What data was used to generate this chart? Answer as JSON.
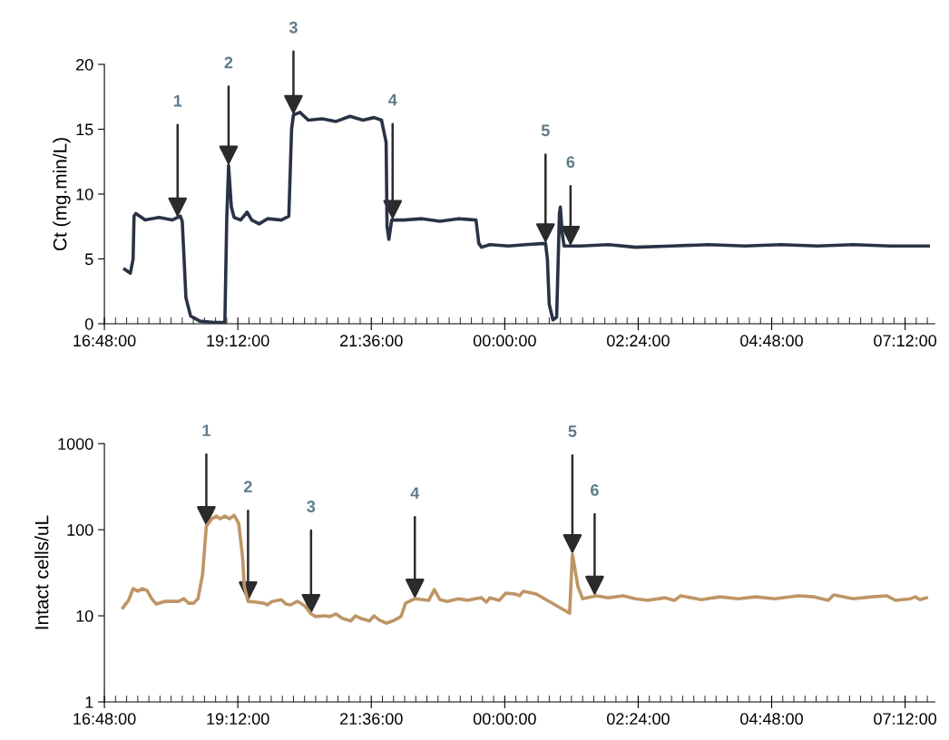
{
  "chart_data": [
    {
      "type": "line",
      "ylabel": "Ct (mg.min/L)",
      "xlim": [
        "2000-01-01T16:48",
        "2000-01-02T07:44"
      ],
      "ylim": [
        0,
        20
      ],
      "yticks": [
        0,
        5,
        10,
        15,
        20
      ],
      "xticks": [
        {
          "value": "2000-01-01T16:48",
          "label": "16:48:00"
        },
        {
          "value": "2000-01-01T19:12",
          "label": "19:12:00"
        },
        {
          "value": "2000-01-01T21:36",
          "label": "21:36:00"
        },
        {
          "value": "2000-01-02T00:00",
          "label": "00:00:00"
        },
        {
          "value": "2000-01-02T02:24",
          "label": "02:24:00"
        },
        {
          "value": "2000-01-02T04:48",
          "label": "04:48:00"
        },
        {
          "value": "2000-01-02T07:12",
          "label": "07:12:00"
        }
      ],
      "grid": false,
      "legend": false,
      "marker": "none",
      "line_style": "solid",
      "series": [
        {
          "color": "#2a3345",
          "x": [
            "2000-01-01T17:10",
            "2000-01-01T17:16",
            "2000-01-01T17:19",
            "2000-01-01T17:20",
            "2000-01-01T17:22",
            "2000-01-01T17:32",
            "2000-01-01T17:47",
            "2000-01-01T18:01",
            "2000-01-01T18:10",
            "2000-01-01T18:12",
            "2000-01-01T18:14",
            "2000-01-01T18:16",
            "2000-01-01T18:21",
            "2000-01-01T18:31",
            "2000-01-01T18:46",
            "2000-01-01T18:58",
            "2000-01-01T19:00",
            "2000-01-01T19:02",
            "2000-01-01T19:05",
            "2000-01-01T19:08",
            "2000-01-01T19:15",
            "2000-01-01T19:22",
            "2000-01-01T19:27",
            "2000-01-01T19:35",
            "2000-01-01T19:44",
            "2000-01-01T19:59",
            "2000-01-01T20:07",
            "2000-01-01T20:10",
            "2000-01-01T20:12",
            "2000-01-01T20:19",
            "2000-01-01T20:28",
            "2000-01-01T20:43",
            "2000-01-01T20:58",
            "2000-01-01T21:13",
            "2000-01-01T21:27",
            "2000-01-01T21:39",
            "2000-01-01T21:47",
            "2000-01-01T21:52",
            "2000-01-01T21:53",
            "2000-01-01T21:55",
            "2000-01-01T21:58",
            "2000-01-01T22:11",
            "2000-01-01T22:31",
            "2000-01-01T22:50",
            "2000-01-01T23:10",
            "2000-01-01T23:29",
            "2000-01-01T23:32",
            "2000-01-01T23:35",
            "2000-01-01T23:44",
            "2000-01-02T00:04",
            "2000-01-02T00:23",
            "2000-01-02T00:44",
            "2000-01-02T00:46",
            "2000-01-02T00:48",
            "2000-01-02T00:52",
            "2000-01-02T00:56",
            "2000-01-02T00:59",
            "2000-01-02T01:00",
            "2000-01-02T01:02",
            "2000-01-02T01:04",
            "2000-01-02T01:22",
            "2000-01-02T01:52",
            "2000-01-02T02:21",
            "2000-01-02T03:00",
            "2000-01-02T03:40",
            "2000-01-02T04:19",
            "2000-01-02T04:58",
            "2000-01-02T05:37",
            "2000-01-02T06:16",
            "2000-01-02T06:55",
            "2000-01-02T07:37"
          ],
          "values": [
            4.2,
            3.9,
            5.0,
            8.3,
            8.5,
            8.0,
            8.2,
            8.0,
            8.3,
            7.9,
            5.0,
            2.0,
            0.6,
            0.2,
            0.1,
            0.1,
            8.0,
            12.2,
            9.0,
            8.2,
            8.0,
            8.6,
            8.0,
            7.7,
            8.1,
            8.0,
            8.3,
            15.0,
            16.1,
            16.3,
            15.7,
            15.8,
            15.6,
            16.0,
            15.7,
            15.9,
            15.7,
            14.0,
            7.5,
            6.5,
            8.0,
            8.0,
            8.1,
            7.9,
            8.1,
            8.0,
            6.2,
            5.9,
            6.1,
            6.0,
            6.1,
            6.2,
            5.0,
            1.5,
            0.3,
            0.5,
            8.5,
            9.0,
            7.0,
            6.0,
            6.0,
            6.1,
            5.9,
            6.0,
            6.1,
            6.0,
            6.1,
            6.0,
            6.1,
            6.0,
            6.0
          ]
        }
      ],
      "annotations": [
        {
          "text": "1",
          "x": "2000-01-01T18:07",
          "y": 8.2
        },
        {
          "text": "2",
          "x": "2000-01-01T19:02",
          "y": 12.2
        },
        {
          "text": "3",
          "x": "2000-01-01T20:12",
          "y": 16.1
        },
        {
          "text": "4",
          "x": "2000-01-01T21:59",
          "y": 8.0
        },
        {
          "text": "5",
          "x": "2000-01-02T00:44",
          "y": 6.2
        },
        {
          "text": "6",
          "x": "2000-01-02T01:11",
          "y": 6.0
        }
      ]
    },
    {
      "type": "line",
      "ylabel": "Intact cells/uL",
      "log": true,
      "xlim": [
        "2000-01-01T16:48",
        "2000-01-02T07:44"
      ],
      "ylim": [
        1,
        1000
      ],
      "yticks": [
        1,
        10,
        100,
        1000
      ],
      "xticks": [
        {
          "value": "2000-01-01T16:48",
          "label": "16:48:00"
        },
        {
          "value": "2000-01-01T19:12",
          "label": "19:12:00"
        },
        {
          "value": "2000-01-01T21:36",
          "label": "21:36:00"
        },
        {
          "value": "2000-01-02T00:00",
          "label": "00:00:00"
        },
        {
          "value": "2000-01-02T02:24",
          "label": "02:24:00"
        },
        {
          "value": "2000-01-02T04:48",
          "label": "04:48:00"
        },
        {
          "value": "2000-01-02T07:12",
          "label": "07:12:00"
        }
      ],
      "grid": false,
      "legend": false,
      "marker": "none",
      "line_style": "solid",
      "series": [
        {
          "color": "#bf9566",
          "x": [
            "2000-01-01T17:08",
            "2000-01-01T17:14",
            "2000-01-01T17:19",
            "2000-01-01T17:24",
            "2000-01-01T17:29",
            "2000-01-01T17:34",
            "2000-01-01T17:39",
            "2000-01-01T17:44",
            "2000-01-01T17:53",
            "2000-01-01T18:08",
            "2000-01-01T18:14",
            "2000-01-01T18:19",
            "2000-01-01T18:24",
            "2000-01-01T18:29",
            "2000-01-01T18:34",
            "2000-01-01T18:38",
            "2000-01-01T18:44",
            "2000-01-01T18:49",
            "2000-01-01T18:53",
            "2000-01-01T18:58",
            "2000-01-01T19:03",
            "2000-01-01T19:08",
            "2000-01-01T19:13",
            "2000-01-01T19:17",
            "2000-01-01T19:19",
            "2000-01-01T19:23",
            "2000-01-01T19:32",
            "2000-01-01T19:40",
            "2000-01-01T19:44",
            "2000-01-01T19:49",
            "2000-01-01T19:59",
            "2000-01-01T20:04",
            "2000-01-01T20:09",
            "2000-01-01T20:16",
            "2000-01-01T20:20",
            "2000-01-01T20:25",
            "2000-01-01T20:31",
            "2000-01-01T20:36",
            "2000-01-01T20:45",
            "2000-01-01T20:51",
            "2000-01-01T20:58",
            "2000-01-01T21:05",
            "2000-01-01T21:14",
            "2000-01-01T21:19",
            "2000-01-01T21:25",
            "2000-01-01T21:34",
            "2000-01-01T21:39",
            "2000-01-01T21:45",
            "2000-01-01T21:52",
            "2000-01-01T21:59",
            "2000-01-01T22:08",
            "2000-01-01T22:13",
            "2000-01-01T22:23",
            "2000-01-01T22:38",
            "2000-01-01T22:44",
            "2000-01-01T22:50",
            "2000-01-01T22:58",
            "2000-01-01T23:10",
            "2000-01-01T23:20",
            "2000-01-01T23:28",
            "2000-01-01T23:35",
            "2000-01-01T23:40",
            "2000-01-01T23:44",
            "2000-01-01T23:54",
            "2000-01-02T00:01",
            "2000-01-02T00:11",
            "2000-01-02T00:16",
            "2000-01-02T00:20",
            "2000-01-02T00:34",
            "2000-01-02T01:10",
            "2000-01-02T01:13",
            "2000-01-02T01:19",
            "2000-01-02T01:24",
            "2000-01-02T01:39",
            "2000-01-02T01:52",
            "2000-01-02T02:08",
            "2000-01-02T02:21",
            "2000-01-02T02:34",
            "2000-01-02T02:53",
            "2000-01-02T03:03",
            "2000-01-02T03:10",
            "2000-01-02T03:32",
            "2000-01-02T03:52",
            "2000-01-02T04:12",
            "2000-01-02T04:31",
            "2000-01-02T04:51",
            "2000-01-02T05:17",
            "2000-01-02T05:34",
            "2000-01-02T05:49",
            "2000-01-02T05:55",
            "2000-01-02T06:16",
            "2000-01-02T06:36",
            "2000-01-02T06:52",
            "2000-01-02T07:02",
            "2000-01-02T07:18",
            "2000-01-02T07:23",
            "2000-01-02T07:28",
            "2000-01-02T07:35"
          ],
          "values": [
            12.4,
            15.1,
            20.7,
            19.3,
            20.7,
            19.7,
            15.8,
            13.7,
            14.7,
            14.7,
            15.8,
            14.0,
            14.0,
            15.8,
            30.5,
            110,
            134,
            144,
            134,
            144,
            134,
            147,
            118,
            49.5,
            21.8,
            14.7,
            14.4,
            14.0,
            13.4,
            14.7,
            15.4,
            13.7,
            13.4,
            14.7,
            14.0,
            12.8,
            10.5,
            9.8,
            10.0,
            9.8,
            10.5,
            9.3,
            8.7,
            10.0,
            9.3,
            8.7,
            10.0,
            8.9,
            8.2,
            8.7,
            9.8,
            14.0,
            15.8,
            15.1,
            20.2,
            15.4,
            14.7,
            15.8,
            15.1,
            15.8,
            16.2,
            14.4,
            16.2,
            15.1,
            18.3,
            17.9,
            17.1,
            19.3,
            17.9,
            10.7,
            52,
            21.8,
            15.8,
            17.1,
            16.2,
            17.1,
            15.8,
            15.1,
            16.2,
            15.1,
            17.1,
            15.4,
            16.6,
            15.8,
            16.6,
            15.8,
            17.1,
            16.6,
            15.1,
            17.5,
            15.8,
            16.6,
            17.1,
            15.1,
            15.8,
            16.6,
            15.4,
            16.2
          ]
        }
      ],
      "annotations": [
        {
          "text": "1",
          "x": "2000-01-01T18:38",
          "y": 110
        },
        {
          "text": "2",
          "x": "2000-01-01T19:23",
          "y": 14.7
        },
        {
          "text": "3",
          "x": "2000-01-01T20:31",
          "y": 10.5
        },
        {
          "text": "4",
          "x": "2000-01-01T22:23",
          "y": 15.8
        },
        {
          "text": "5",
          "x": "2000-01-02T01:13",
          "y": 52
        },
        {
          "text": "6",
          "x": "2000-01-02T01:37",
          "y": 17.1
        }
      ]
    }
  ]
}
